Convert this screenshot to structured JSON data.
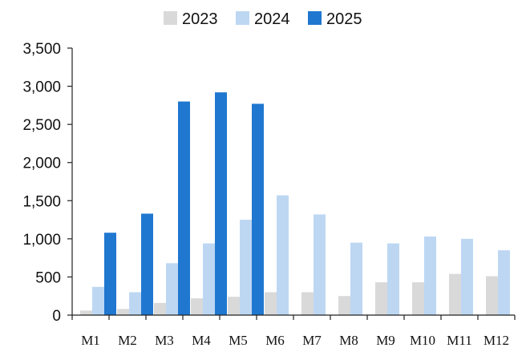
{
  "chart_data": {
    "type": "bar",
    "title": "",
    "xlabel": "",
    "ylabel": "",
    "categories": [
      "M1",
      "M2",
      "M3",
      "M4",
      "M5",
      "M6",
      "M7",
      "M8",
      "M9",
      "M10",
      "M11",
      "M12"
    ],
    "series": [
      {
        "name": "2023",
        "color": "#d9d9d9",
        "values": [
          60,
          80,
          160,
          220,
          240,
          300,
          300,
          250,
          430,
          430,
          540,
          510
        ]
      },
      {
        "name": "2024",
        "color": "#bdd7f3",
        "values": [
          370,
          300,
          680,
          940,
          1250,
          1570,
          1320,
          950,
          940,
          1030,
          1000,
          850
        ]
      },
      {
        "name": "2025",
        "color": "#1f77d0",
        "values": [
          1080,
          1330,
          2800,
          2920,
          2770,
          null,
          null,
          null,
          null,
          null,
          null,
          null
        ]
      }
    ],
    "ylim": [
      0,
      3500
    ],
    "yticks": [
      0,
      500,
      1000,
      1500,
      2000,
      2500,
      3000,
      3500
    ],
    "ytick_labels": [
      "0",
      "500",
      "1,000",
      "1,500",
      "2,000",
      "2,500",
      "3,000",
      "3,500"
    ],
    "grid": false,
    "legend_position": "top-center"
  }
}
